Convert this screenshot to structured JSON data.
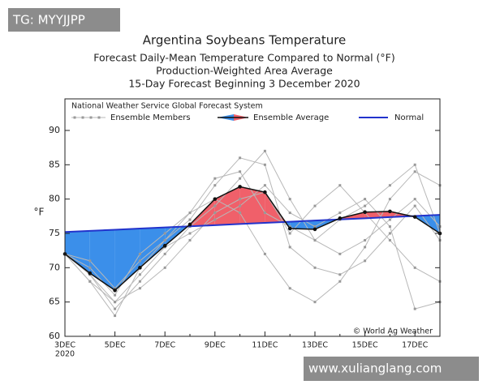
{
  "chart_data": {
    "type": "line",
    "title": "Argentina Soybeans Temperature",
    "subtitle_lines": [
      "Forecast Daily-Mean Temperature Compared to Normal (°F)",
      "Production-Weighted Area Average",
      "15-Day Forecast Beginning 3 December 2020"
    ],
    "y_label": "°F",
    "legend_title": "National Weather Service Global Forecast System",
    "credit": "© World Ag Weather",
    "categories": [
      "3DEC",
      null,
      "5DEC",
      null,
      "7DEC",
      null,
      "9DEC",
      null,
      "11DEC",
      null,
      "13DEC",
      null,
      "15DEC",
      null,
      "17DEC",
      null
    ],
    "year_label": "2020",
    "ylim": [
      60,
      94.6
    ],
    "yticks": [
      60,
      65,
      70,
      75,
      80,
      85,
      90
    ],
    "fill_below_color": "#3b8fea",
    "fill_above_color": "#f0606a",
    "series": [
      {
        "name": "Ensemble Members",
        "color": "#b8b8b8",
        "members": [
          [
            72,
            69,
            64,
            68,
            72,
            76,
            79,
            83,
            87,
            80,
            74,
            72,
            74,
            77,
            80,
            76
          ],
          [
            72,
            68,
            63,
            70,
            74,
            77,
            82,
            86,
            85,
            73,
            70,
            69,
            71,
            75,
            79,
            74
          ],
          [
            72,
            70,
            66,
            72,
            75,
            78,
            80,
            78,
            72,
            67,
            65,
            68,
            73,
            80,
            84,
            82
          ],
          [
            72,
            69,
            65,
            69,
            73,
            75,
            77,
            79,
            82,
            78,
            76,
            78,
            80,
            76,
            64,
            65
          ],
          [
            72,
            71,
            67,
            71,
            74,
            78,
            83,
            84,
            78,
            76,
            74,
            77,
            79,
            82,
            85,
            75
          ],
          [
            72,
            68,
            65,
            67,
            70,
            74,
            78,
            80,
            81,
            75,
            79,
            82,
            78,
            74,
            70,
            68
          ]
        ]
      },
      {
        "name": "Ensemble Average",
        "color": "#111111",
        "values": [
          72,
          69.2,
          66.7,
          70,
          73.2,
          76.3,
          80,
          81.8,
          81,
          75.7,
          75.6,
          77.2,
          78.1,
          78.2,
          77.4,
          75
        ]
      },
      {
        "name": "Normal",
        "color": "#2233cc",
        "values": [
          75.2,
          75.37,
          75.53,
          75.7,
          75.87,
          76.03,
          76.2,
          76.37,
          76.53,
          76.7,
          76.87,
          77.03,
          77.2,
          77.37,
          77.53,
          77.7
        ]
      }
    ]
  },
  "watermarks": {
    "top": "TG: MYYJJPP",
    "bottom": "www.xulianglang.com"
  }
}
